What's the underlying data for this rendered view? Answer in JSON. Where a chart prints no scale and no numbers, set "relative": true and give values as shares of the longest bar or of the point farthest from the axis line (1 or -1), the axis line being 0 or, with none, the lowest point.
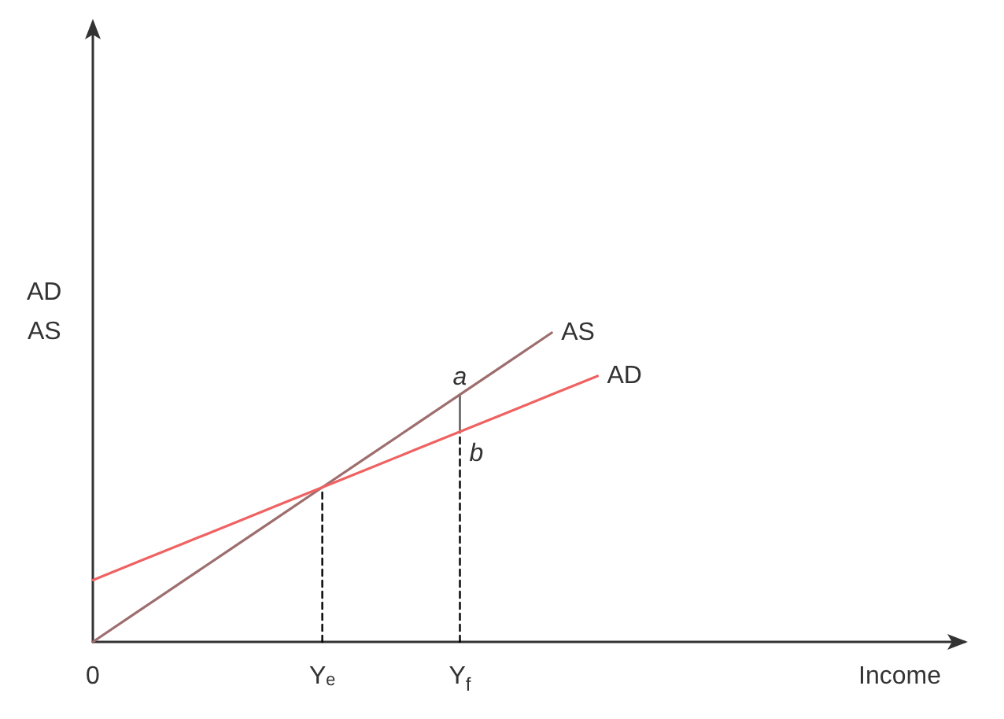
{
  "chart_data": {
    "type": "line",
    "relative": true,
    "marker": "none",
    "legend": false,
    "xlabel": "Income",
    "ylabel": "AD\nAS",
    "categories": [
      "0",
      null,
      null,
      null,
      null,
      "Yₑ",
      null,
      null,
      "Y$_{f}$",
      null,
      null,
      null,
      null,
      null,
      null,
      null,
      null,
      null,
      null,
      null
    ],
    "series": [
      {
        "name": "AS",
        "color": "#9e6e6e",
        "values": [
          0,
          0.1,
          0.2,
          0.3,
          0.4,
          0.5,
          0.6,
          0.7,
          0.8,
          0.9,
          1,
          null,
          null,
          null,
          null,
          null,
          null,
          null,
          null,
          null
        ]
      },
      {
        "name": "AD",
        "color": "#f06262",
        "values": [
          0.2,
          0.26,
          0.32,
          0.38,
          0.44,
          0.5,
          0.56,
          0.62,
          0.68,
          0.74,
          0.8,
          0.86,
          null,
          null,
          null,
          null,
          null,
          null,
          null,
          null
        ]
      },
      {
        "color": "#000000",
        "line_style": "dashed",
        "x": [
          "Yₑ",
          "Yₑ"
        ],
        "values": [
          0,
          0.5
        ]
      },
      {
        "color": "#000000",
        "line_style": "dashed",
        "x": [
          "Y$_{f}$",
          "Y$_{f}$"
        ],
        "values": [
          0,
          0.68
        ]
      },
      {
        "color": "#555555",
        "x": [
          "Y$_{f}$",
          "Y$_{f}$"
        ],
        "values": [
          0.68,
          0.8
        ]
      }
    ],
    "annotations": [
      {
        "text": "a",
        "x": "Y$_{f}$",
        "y": 0.8
      },
      {
        "text": "b",
        "x": "Y$_{f}$",
        "y": 0.68
      }
    ]
  }
}
